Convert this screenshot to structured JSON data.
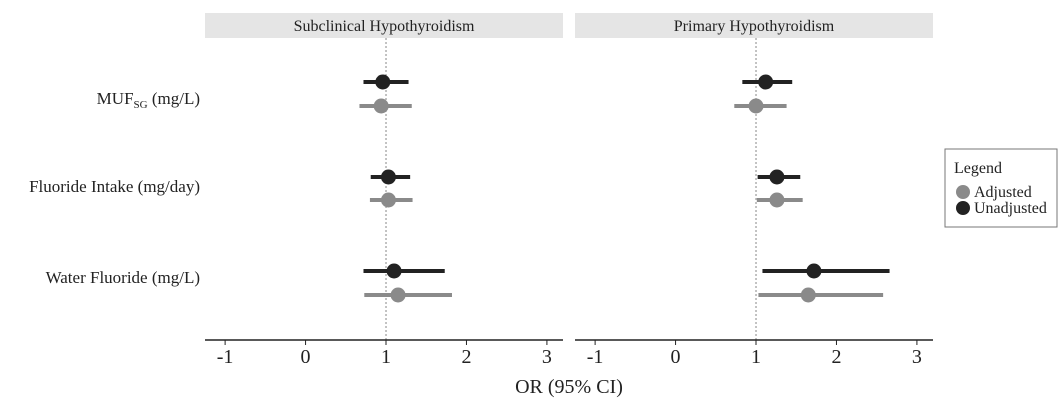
{
  "chart_data": {
    "type": "forest",
    "xlabel": "OR (95% CI)",
    "xlim": [
      -1.25,
      3.2
    ],
    "xticks": [
      -1,
      0,
      1,
      2,
      3
    ],
    "xtick_labels": [
      "-1",
      "0",
      "1",
      "2",
      "3"
    ],
    "reference_line": 1,
    "rows": [
      {
        "label": "MUF",
        "sub": "SG",
        "unit": " (mg/L)"
      },
      {
        "label": "Fluoride Intake (mg/day)",
        "sub": "",
        "unit": ""
      },
      {
        "label": "Water Fluoride (mg/L)",
        "sub": "",
        "unit": ""
      }
    ],
    "panels": [
      {
        "title": "Subclinical Hypothyroidism",
        "estimates": [
          {
            "row": 0,
            "series": "Unadjusted",
            "or": 0.96,
            "lo": 0.72,
            "hi": 1.28
          },
          {
            "row": 0,
            "series": "Adjusted",
            "or": 0.94,
            "lo": 0.67,
            "hi": 1.32
          },
          {
            "row": 1,
            "series": "Unadjusted",
            "or": 1.03,
            "lo": 0.81,
            "hi": 1.3
          },
          {
            "row": 1,
            "series": "Adjusted",
            "or": 1.03,
            "lo": 0.8,
            "hi": 1.33
          },
          {
            "row": 2,
            "series": "Unadjusted",
            "or": 1.1,
            "lo": 0.72,
            "hi": 1.73
          },
          {
            "row": 2,
            "series": "Adjusted",
            "or": 1.15,
            "lo": 0.73,
            "hi": 1.82
          }
        ]
      },
      {
        "title": "Primary Hypothyroidism",
        "estimates": [
          {
            "row": 0,
            "series": "Unadjusted",
            "or": 1.12,
            "lo": 0.83,
            "hi": 1.45
          },
          {
            "row": 0,
            "series": "Adjusted",
            "or": 1.0,
            "lo": 0.73,
            "hi": 1.38
          },
          {
            "row": 1,
            "series": "Unadjusted",
            "or": 1.26,
            "lo": 1.02,
            "hi": 1.55
          },
          {
            "row": 1,
            "series": "Adjusted",
            "or": 1.26,
            "lo": 1.01,
            "hi": 1.58
          },
          {
            "row": 2,
            "series": "Unadjusted",
            "or": 1.72,
            "lo": 1.08,
            "hi": 2.66
          },
          {
            "row": 2,
            "series": "Adjusted",
            "or": 1.65,
            "lo": 1.03,
            "hi": 2.58
          }
        ]
      }
    ],
    "legend": {
      "title": "Legend",
      "placement": "right",
      "entries": [
        {
          "name": "Adjusted",
          "color": "#8a8a8a"
        },
        {
          "name": "Unadjusted",
          "color": "#222222"
        }
      ]
    },
    "colors": {
      "Adjusted": "#8a8a8a",
      "Unadjusted": "#222222",
      "strip": "#e5e5e5",
      "refline": "#888888"
    }
  }
}
